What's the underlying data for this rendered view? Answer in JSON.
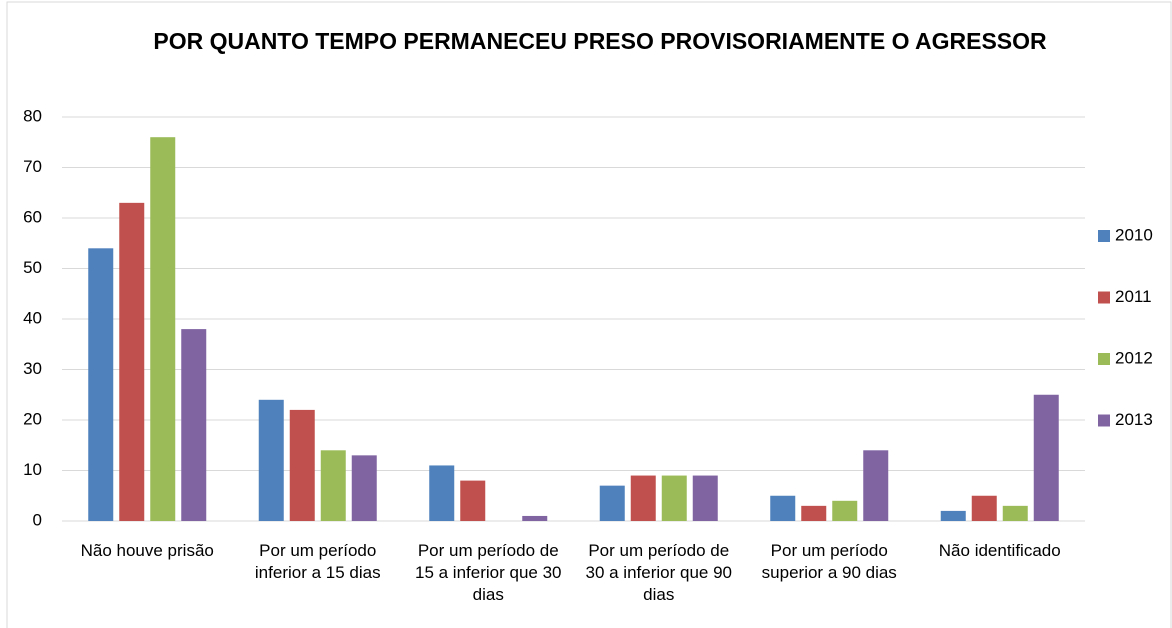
{
  "chart_data": {
    "type": "bar",
    "title": "POR QUANTO TEMPO PERMANECEU PRESO PROVISORIAMENTE O AGRESSOR",
    "categories": [
      "Não houve prisão",
      "Por um período inferior a 15 dias",
      "Por um período de 15 a inferior que 30 dias",
      "Por um período de 30 a inferior que 90 dias",
      "Por um período superior a 90 dias",
      "Não identificado"
    ],
    "series": [
      {
        "name": "2010",
        "color": "#4f81bd",
        "values": [
          54,
          24,
          11,
          7,
          5,
          2
        ]
      },
      {
        "name": "2011",
        "color": "#c0504d",
        "values": [
          63,
          22,
          8,
          9,
          3,
          5
        ]
      },
      {
        "name": "2012",
        "color": "#9bbb59",
        "values": [
          76,
          14,
          0,
          9,
          4,
          3
        ]
      },
      {
        "name": "2013",
        "color": "#8064a2",
        "values": [
          38,
          13,
          1,
          9,
          14,
          25
        ]
      }
    ],
    "ylim": [
      0,
      80
    ],
    "yticks": [
      0,
      10,
      20,
      30,
      40,
      50,
      60,
      70,
      80
    ],
    "grid": true,
    "legend": "right"
  }
}
